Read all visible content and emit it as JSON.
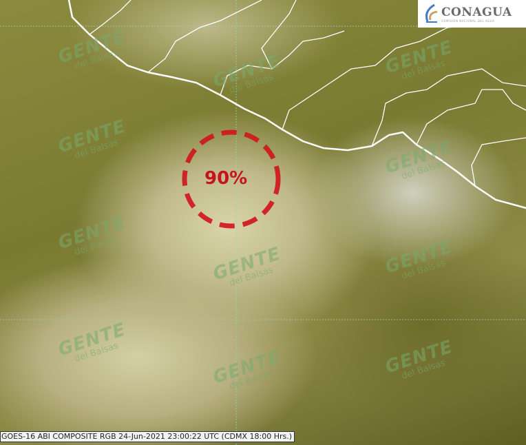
{
  "logo": {
    "name": "CONAGUA",
    "subtitle": "COMISIÓN NACIONAL DEL AGUA"
  },
  "probability_label": "90%",
  "caption": "GOES-16 ABI COMPOSITE RGB  24-Jun-2021 23:00:22 UTC (CDMX  18:00 Hrs.)",
  "watermark": {
    "line1": "GENTE",
    "line2": "del Balsas"
  },
  "colors": {
    "circle": "#d0141c",
    "coast": "#ffffff",
    "grid": "#7fd0c0"
  }
}
